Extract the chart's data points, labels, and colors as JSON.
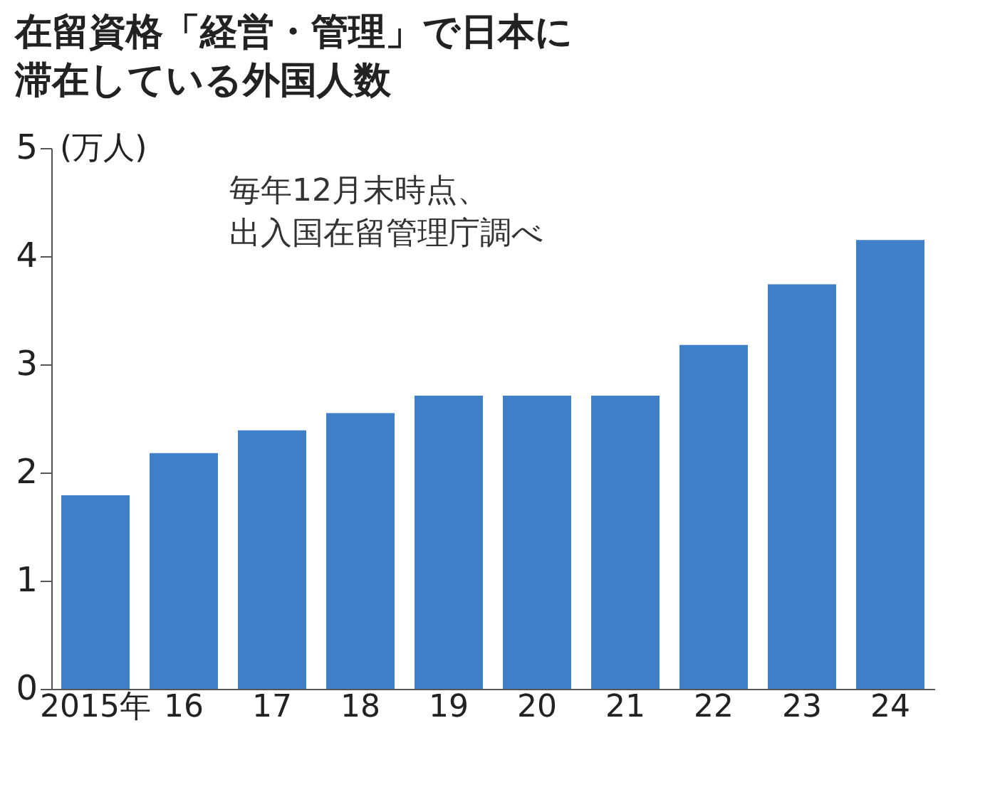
{
  "chart_data": {
    "type": "bar",
    "title": "在留資格「経営・管理」で日本に滞在している外国人数",
    "ylabel": "(万人)",
    "annotations": [
      "毎年12月末時点、",
      "出入国在留管理庁調べ"
    ],
    "categories": [
      "2015年",
      "16",
      "17",
      "18",
      "19",
      "20",
      "21",
      "22",
      "23",
      "24"
    ],
    "values": [
      1.79,
      2.18,
      2.39,
      2.55,
      2.71,
      2.71,
      2.71,
      3.18,
      3.74,
      4.15
    ],
    "color": "#3f80c8",
    "ylim": [
      0,
      5
    ],
    "yticks": [
      0,
      1,
      2,
      3,
      4,
      5
    ],
    "grid": false
  }
}
